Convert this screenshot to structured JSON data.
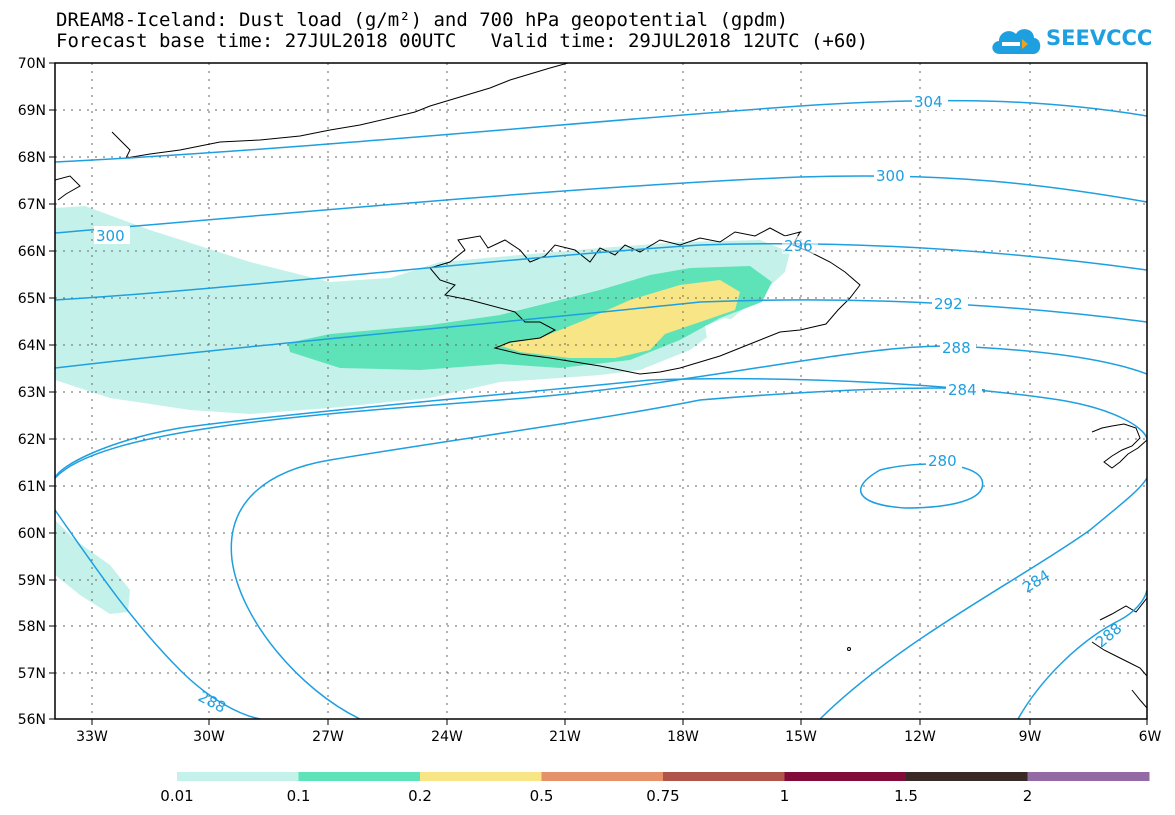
{
  "header": {
    "title_line1": "DREAM8-Iceland: Dust load (g/m²) and 700 hPa geopotential (gpdm)",
    "title_line2": "Forecast base time: 27JUL2018 00UTC   Valid time: 29JUL2018 12UTC (+60)"
  },
  "logo": {
    "text": "SEEVCCC",
    "icon": "cloud-logo-icon",
    "color": "#1e9fe0"
  },
  "map": {
    "lon_labels": [
      "33W",
      "30W",
      "27W",
      "24W",
      "21W",
      "18W",
      "15W",
      "12W",
      "9W",
      "6W"
    ],
    "lat_labels": [
      "70N",
      "69N",
      "68N",
      "67N",
      "66N",
      "65N",
      "64N",
      "63N",
      "62N",
      "61N",
      "60N",
      "59N",
      "58N",
      "57N",
      "56N"
    ],
    "lon_range": [
      -34.5,
      -6
    ],
    "lat_range": [
      56,
      70
    ],
    "contour_color": "#1e9fe0",
    "contour_labels": [
      "304",
      "300",
      "300",
      "296",
      "292",
      "288",
      "284",
      "280",
      "284",
      "288",
      "288"
    ]
  },
  "legend": {
    "colors": [
      "#c4f2ea",
      "#5ee3b9",
      "#f7e586",
      "#e5916a",
      "#b0554a",
      "#820c39",
      "#3a2a25",
      "#936aa3"
    ],
    "labels": [
      "0.01",
      "0.1",
      "0.2",
      "0.5",
      "0.75",
      "1",
      "1.5",
      "2"
    ]
  }
}
